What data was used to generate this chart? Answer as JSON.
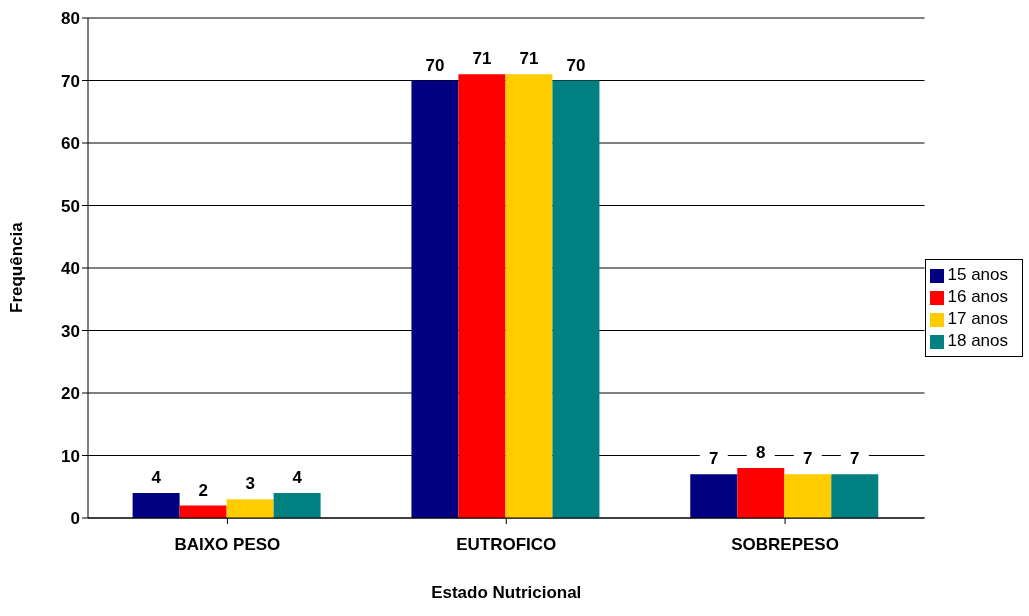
{
  "chart_data": {
    "type": "bar",
    "xlabel": "Estado Nutricional",
    "ylabel": "Frequência",
    "categories": [
      "BAIXO PESO",
      "EUTROFICO",
      "SOBREPESO"
    ],
    "series": [
      {
        "name": "15 anos",
        "color": "#000080",
        "values": [
          4,
          70,
          7
        ]
      },
      {
        "name": "16 anos",
        "color": "#ff0000",
        "values": [
          2,
          71,
          8
        ]
      },
      {
        "name": "17 anos",
        "color": "#ffcc00",
        "values": [
          3,
          71,
          7
        ]
      },
      {
        "name": "18 anos",
        "color": "#008080",
        "values": [
          4,
          70,
          7
        ]
      }
    ],
    "ylim": [
      0,
      80
    ],
    "yticks": [
      0,
      10,
      20,
      30,
      40,
      50,
      60,
      70,
      80
    ],
    "grid": "y",
    "legend": "right",
    "data_labels": true
  }
}
